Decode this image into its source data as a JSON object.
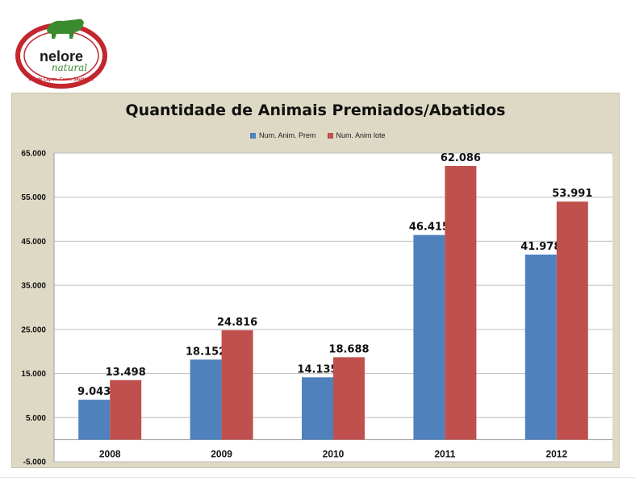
{
  "logo": {
    "brand": "nelore",
    "script": "natural",
    "tagline": "Boi de Capim. Carne Saudável."
  },
  "chart_data": {
    "type": "bar",
    "title": "Quantidade de Animais Premiados/Abatidos",
    "categories": [
      "2008",
      "2009",
      "2010",
      "2011",
      "2012"
    ],
    "series": [
      {
        "name": "Num. Anim. Prem",
        "color": "#4f81bd",
        "values": [
          9043,
          18152,
          14135,
          46415,
          41978
        ],
        "labels": [
          "9.043",
          "18.152",
          "14.135",
          "46.415",
          "41.978"
        ]
      },
      {
        "name": "Num. Anim lote",
        "color": "#c0504d",
        "values": [
          13498,
          24816,
          18688,
          62086,
          53991
        ],
        "labels": [
          "13.498",
          "24.816",
          "18.688",
          "62.086",
          "53.991"
        ]
      }
    ],
    "ylim": [
      -5000,
      65000
    ],
    "yticks": [
      65000,
      55000,
      45000,
      35000,
      25000,
      15000,
      5000,
      -5000
    ],
    "ytick_labels": [
      "65.000",
      "55.000",
      "45.000",
      "35.000",
      "25.000",
      "15.000",
      "5.000",
      "-5.000"
    ],
    "grid": true,
    "legend_position": "top"
  }
}
